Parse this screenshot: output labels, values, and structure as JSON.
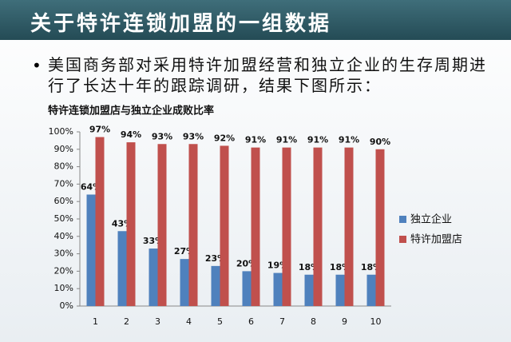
{
  "header": {
    "title": "关于特许连锁加盟的一组数据"
  },
  "bullet": "美国商务部对采用特许加盟经营和独立企业的生存周期进行了长达十年的跟踪调研，结果下图所示：",
  "chart_data": {
    "type": "bar",
    "title": "特许连锁加盟店与独立企业成败比率",
    "categories": [
      "1",
      "2",
      "3",
      "4",
      "5",
      "6",
      "7",
      "8",
      "9",
      "10"
    ],
    "series": [
      {
        "name": "独立企业",
        "color": "#4f81bd",
        "values": [
          64,
          43,
          33,
          27,
          23,
          20,
          19,
          18,
          18,
          18
        ],
        "value_labels": [
          "64%",
          "43%",
          "33%",
          "27%",
          "23%",
          "20%",
          "19%",
          "18%",
          "18%",
          "18%"
        ]
      },
      {
        "name": "特许加盟店",
        "color": "#c0504d",
        "values": [
          97,
          94,
          93,
          93,
          92,
          91,
          91,
          91,
          91,
          90
        ],
        "value_labels": [
          "97%",
          "94%",
          "93%",
          "93%",
          "92%",
          "91%",
          "91%",
          "91%",
          "91%",
          "90%"
        ]
      }
    ],
    "ylim": [
      0,
      100
    ],
    "yticks": [
      {
        "value": 0,
        "label": "0%"
      },
      {
        "value": 10,
        "label": "10%"
      },
      {
        "value": 20,
        "label": "20%"
      },
      {
        "value": 30,
        "label": "30%"
      },
      {
        "value": 40,
        "label": "40%"
      },
      {
        "value": 50,
        "label": "50%"
      },
      {
        "value": 60,
        "label": "60%"
      },
      {
        "value": 70,
        "label": "70%"
      },
      {
        "value": 80,
        "label": "80%"
      },
      {
        "value": 90,
        "label": "90%"
      },
      {
        "value": 100,
        "label": "100%"
      }
    ],
    "grid": false,
    "legend": "right"
  }
}
